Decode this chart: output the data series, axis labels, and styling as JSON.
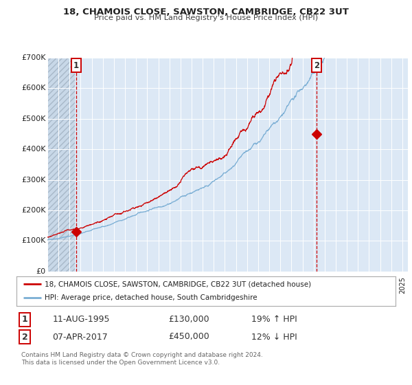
{
  "title_line1": "18, CHAMOIS CLOSE, SAWSTON, CAMBRIDGE, CB22 3UT",
  "title_line2": "Price paid vs. HM Land Registry's House Price Index (HPI)",
  "plot_bg_color": "#dce8f5",
  "hatch_color": "#c0cfe0",
  "red_line_color": "#cc0000",
  "blue_line_color": "#7aaed4",
  "grid_color": "#b8cfe8",
  "xmin": 1993.0,
  "xmax": 2025.5,
  "ymin": 0,
  "ymax": 700000,
  "yticks": [
    0,
    100000,
    200000,
    300000,
    400000,
    500000,
    600000,
    700000
  ],
  "ytick_labels": [
    "£0",
    "£100K",
    "£200K",
    "£300K",
    "£400K",
    "£500K",
    "£600K",
    "£700K"
  ],
  "hatch_xmax": 1995.45,
  "transaction1_x": 1995.6,
  "transaction1_y": 130000,
  "transaction1_label": "1",
  "transaction1_date": "11-AUG-1995",
  "transaction1_price": "£130,000",
  "transaction1_hpi": "19% ↑ HPI",
  "transaction2_x": 2017.27,
  "transaction2_y": 450000,
  "transaction2_label": "2",
  "transaction2_date": "07-APR-2017",
  "transaction2_price": "£450,000",
  "transaction2_hpi": "12% ↓ HPI",
  "legend_line1": "18, CHAMOIS CLOSE, SAWSTON, CAMBRIDGE, CB22 3UT (detached house)",
  "legend_line2": "HPI: Average price, detached house, South Cambridgeshire",
  "footer_line1": "Contains HM Land Registry data © Crown copyright and database right 2024.",
  "footer_line2": "This data is licensed under the Open Government Licence v3.0."
}
